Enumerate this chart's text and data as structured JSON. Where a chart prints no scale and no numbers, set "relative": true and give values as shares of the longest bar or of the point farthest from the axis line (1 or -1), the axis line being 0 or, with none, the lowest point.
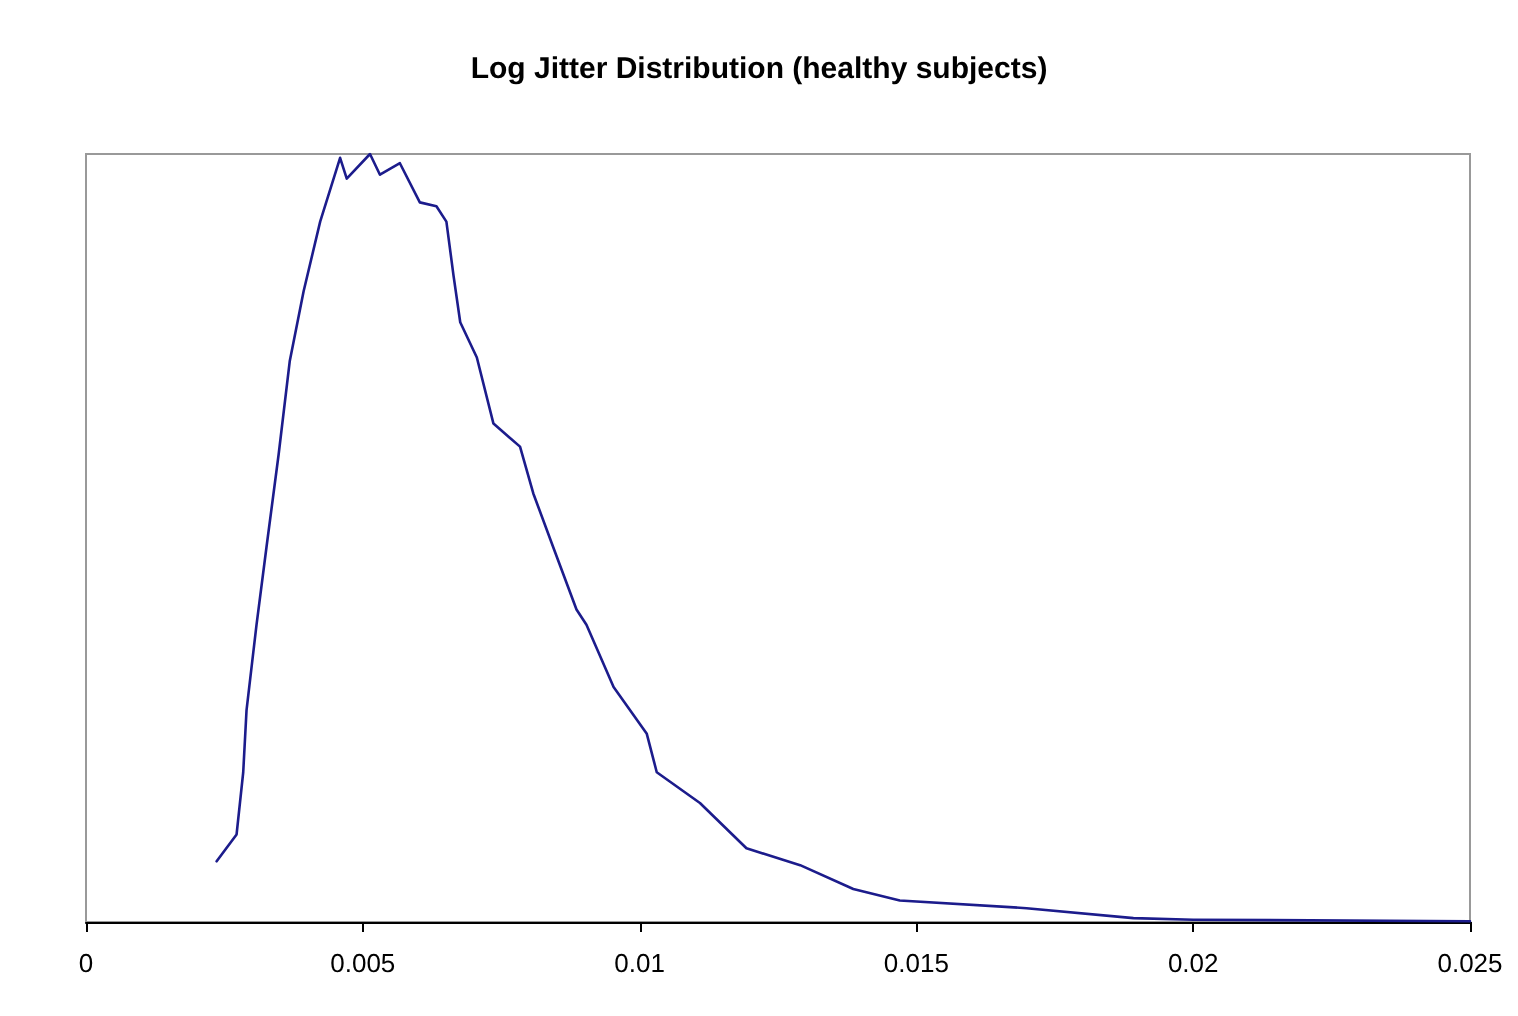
{
  "chart_data": {
    "type": "line",
    "title": "Log Jitter Distribution (healthy subjects)",
    "relative": true,
    "xlim": [
      0,
      0.025
    ],
    "xticks": [
      0,
      0.005,
      0.01,
      0.015,
      0.02,
      0.025
    ],
    "grid": false,
    "marker": "none",
    "line_style": "solid",
    "series": [
      {
        "color": "#1c1c8c",
        "x": [
          0.00236,
          0.00272,
          0.00284,
          0.0029,
          0.00308,
          0.00326,
          0.00348,
          0.00368,
          0.00393,
          0.00423,
          0.00459,
          0.00471,
          0.00513,
          0.00531,
          0.00567,
          0.00603,
          0.00633,
          0.00651,
          0.00664,
          0.00676,
          0.00706,
          0.00736,
          0.00784,
          0.00808,
          0.00844,
          0.00886,
          0.00904,
          0.00953,
          0.01013,
          0.01031,
          0.01109,
          0.01193,
          0.0129,
          0.01386,
          0.0147,
          0.01699,
          0.01892,
          0.02,
          0.025
        ],
        "values": [
          0.079,
          0.114,
          0.195,
          0.276,
          0.387,
          0.488,
          0.609,
          0.73,
          0.821,
          0.912,
          0.995,
          0.968,
          1,
          0.973,
          0.988,
          0.937,
          0.932,
          0.912,
          0.841,
          0.781,
          0.735,
          0.649,
          0.619,
          0.558,
          0.488,
          0.407,
          0.387,
          0.306,
          0.245,
          0.195,
          0.155,
          0.096,
          0.074,
          0.043,
          0.028,
          0.018,
          0.005,
          0.003,
          0.001
        ]
      }
    ]
  }
}
